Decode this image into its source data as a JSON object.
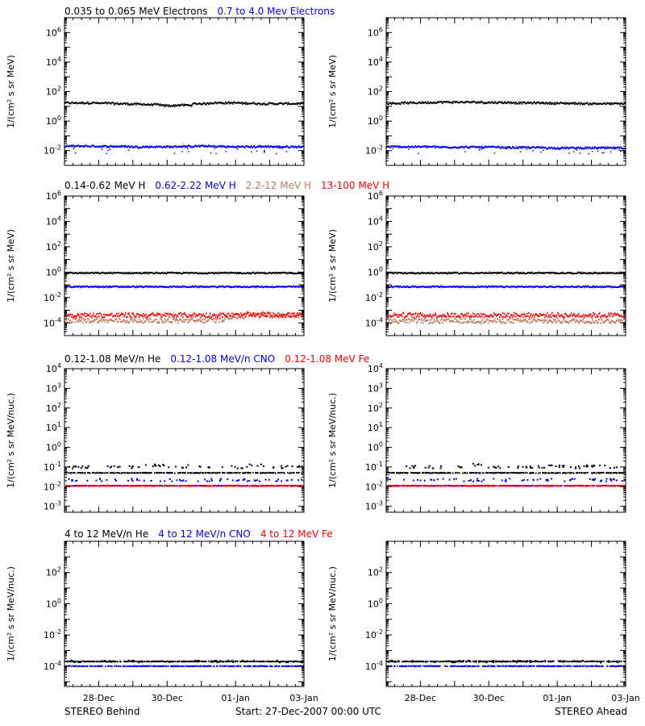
{
  "colors": {
    "black": "#000000",
    "blue": "#0000ff",
    "brown": "#c07a5f",
    "red": "#ff0000"
  },
  "footer": {
    "left": "STEREO Behind",
    "center": "Start: 27-Dec-2007 00:00 UTC",
    "right": "STEREO Ahead"
  },
  "chart_data": [
    {
      "type": "scatter",
      "row_title": [
        {
          "text": "0.035 to 0.065 MeV Electrons",
          "color": "#000000"
        },
        {
          "text": "0.7 to 4.0 Mev Electrons",
          "color": "#0000ff"
        }
      ],
      "ylabel": "1/(cm² s sr MeV)",
      "yscale": "log",
      "ylim": [
        0.001,
        10000000
      ],
      "yticks": [
        {
          "label": "10^-2",
          "value": 0.01
        },
        {
          "label": "10^0",
          "value": 1
        },
        {
          "label": "10^2",
          "value": 100
        },
        {
          "label": "10^4",
          "value": 10000
        },
        {
          "label": "10^6",
          "value": 1000000
        }
      ],
      "x_ticks": [
        "28-Dec",
        "30-Dec",
        "01-Jan",
        "03-Jan"
      ],
      "xlim_days": [
        0,
        7
      ],
      "panels": [
        {
          "spacecraft": "STEREO Behind",
          "series": [
            {
              "color": "#000000",
              "values": [
                17,
                17,
                16,
                15,
                14,
                13,
                11,
                12,
                15,
                17,
                17,
                16,
                15,
                15,
                15
              ]
            },
            {
              "color": "#0000ff",
              "values": [
                0.02,
                0.02,
                0.019,
                0.019,
                0.018,
                0.018,
                0.018,
                0.019,
                0.02,
                0.019,
                0.018,
                0.018,
                0.019,
                0.018,
                0.018
              ]
            }
          ]
        },
        {
          "spacecraft": "STEREO Ahead",
          "series": [
            {
              "color": "#000000",
              "values": [
                16,
                17,
                18,
                19,
                19,
                19,
                18,
                18,
                17,
                17,
                16,
                16,
                15,
                15,
                15
              ]
            },
            {
              "color": "#0000ff",
              "values": [
                0.018,
                0.018,
                0.018,
                0.017,
                0.017,
                0.017,
                0.017,
                0.016,
                0.016,
                0.016,
                0.015,
                0.015,
                0.015,
                0.015,
                0.015
              ]
            }
          ]
        }
      ]
    },
    {
      "type": "scatter",
      "row_title": [
        {
          "text": "0.14-0.62 MeV H",
          "color": "#000000"
        },
        {
          "text": "0.62-2.22 MeV H",
          "color": "#0000ff"
        },
        {
          "text": "2.2-12 MeV H",
          "color": "#c07a5f"
        },
        {
          "text": "13-100 MeV H",
          "color": "#ff0000"
        }
      ],
      "ylabel": "1/(cm² s sr MeV)",
      "yscale": "log",
      "ylim": [
        1e-05,
        1000000
      ],
      "yticks": [
        {
          "label": "10^-4",
          "value": 0.0001
        },
        {
          "label": "10^-2",
          "value": 0.01
        },
        {
          "label": "10^0",
          "value": 1
        },
        {
          "label": "10^2",
          "value": 100
        },
        {
          "label": "10^4",
          "value": 10000
        },
        {
          "label": "10^6",
          "value": 1000000
        }
      ],
      "x_ticks": [
        "28-Dec",
        "30-Dec",
        "01-Jan",
        "03-Jan"
      ],
      "xlim_days": [
        0,
        7
      ],
      "panels": [
        {
          "spacecraft": "STEREO Behind",
          "series": [
            {
              "color": "#000000",
              "values": [
                0.85,
                0.85,
                0.85,
                0.85,
                0.85,
                0.85,
                0.85,
                0.85,
                0.85,
                0.85,
                0.85,
                0.85
              ]
            },
            {
              "color": "#0000ff",
              "values": [
                0.07,
                0.07,
                0.07,
                0.07,
                0.07,
                0.07,
                0.07,
                0.07,
                0.07,
                0.07,
                0.07,
                0.07
              ]
            },
            {
              "color": "#c07a5f",
              "values": [
                0.00015,
                0.00015,
                0.00015,
                0.00015,
                0.00015,
                0.00015,
                0.00015,
                0.00016,
                0.0003,
                0.0005,
                0.0005,
                0.0004
              ]
            },
            {
              "color": "#ff0000",
              "values": [
                0.0004,
                0.0004,
                0.0004,
                0.0004,
                0.0004,
                0.0004,
                0.0004,
                0.0004,
                0.0004,
                0.0004,
                0.0004,
                0.0004
              ]
            }
          ]
        },
        {
          "spacecraft": "STEREO Ahead",
          "series": [
            {
              "color": "#000000",
              "values": [
                0.85,
                0.85,
                0.85,
                0.85,
                0.85,
                0.85,
                0.85,
                0.85,
                0.85,
                0.85,
                0.85,
                0.85
              ]
            },
            {
              "color": "#0000ff",
              "values": [
                0.07,
                0.07,
                0.07,
                0.07,
                0.07,
                0.07,
                0.07,
                0.07,
                0.07,
                0.07,
                0.07,
                0.07
              ]
            },
            {
              "color": "#c07a5f",
              "values": [
                0.00014,
                0.00014,
                0.00014,
                0.00014,
                0.00014,
                0.00014,
                0.00014,
                0.00014,
                0.00014,
                0.00014,
                0.00014,
                0.00014
              ]
            },
            {
              "color": "#ff0000",
              "values": [
                0.0004,
                0.0004,
                0.0004,
                0.0004,
                0.0004,
                0.0004,
                0.0004,
                0.0004,
                0.0004,
                0.0004,
                0.0004,
                0.0004
              ]
            }
          ]
        }
      ]
    },
    {
      "type": "scatter",
      "row_title": [
        {
          "text": "0.12-1.08 MeV/n He",
          "color": "#000000"
        },
        {
          "text": "0.12-1.08 MeV/n CNO",
          "color": "#0000ff"
        },
        {
          "text": "0.12-1.08 MeV Fe",
          "color": "#ff0000"
        }
      ],
      "ylabel": "1/(cm² s sr MeV/nuc.)",
      "yscale": "log",
      "ylim": [
        0.0005,
        10000
      ],
      "yticks": [
        {
          "label": "10^-3",
          "value": 0.001
        },
        {
          "label": "10^-2",
          "value": 0.01
        },
        {
          "label": "10^-1",
          "value": 0.1
        },
        {
          "label": "10^0",
          "value": 1
        },
        {
          "label": "10^1",
          "value": 10
        },
        {
          "label": "10^2",
          "value": 100
        },
        {
          "label": "10^3",
          "value": 1000
        },
        {
          "label": "10^4",
          "value": 10000
        }
      ],
      "x_ticks": [
        "28-Dec",
        "30-Dec",
        "01-Jan",
        "03-Jan"
      ],
      "xlim_days": [
        0,
        7
      ],
      "panels": [
        {
          "spacecraft": "STEREO Behind",
          "series": [
            {
              "color": "#000000",
              "values": [
                0.05,
                0.05,
                0.05,
                0.05,
                0.05,
                0.05,
                0.05,
                0.05,
                0.05,
                0.05,
                0.05,
                0.05
              ],
              "sparse": [
                0.1,
                0.1,
                0.11,
                0.1,
                0.12,
                0.1,
                0.11,
                0.1,
                0.1,
                0.12,
                0.1,
                0.1
              ]
            },
            {
              "color": "#0000ff",
              "values": [
                0.011,
                0.011,
                0.011,
                0.011,
                0.011,
                0.011,
                0.011,
                0.011,
                0.011,
                0.011,
                0.011,
                0.011
              ],
              "sparse": [
                0.022,
                0.022,
                0.022,
                0.022,
                0.022,
                0.022,
                0.022,
                0.022,
                0.022,
                0.022,
                0.022,
                0.022
              ]
            },
            {
              "color": "#ff0000",
              "values": [
                0.011,
                0.011,
                0.011,
                0.011,
                0.011,
                0.011,
                0.011,
                0.011,
                0.011,
                0.011,
                0.011,
                0.011
              ]
            }
          ]
        },
        {
          "spacecraft": "STEREO Ahead",
          "series": [
            {
              "color": "#000000",
              "values": [
                0.05,
                0.05,
                0.05,
                0.05,
                0.05,
                0.05,
                0.05,
                0.05,
                0.05,
                0.05,
                0.05,
                0.05
              ],
              "sparse": [
                0.1,
                0.1,
                0.1,
                0.11,
                0.13,
                0.1,
                0.1,
                0.1,
                0.11,
                0.1,
                0.12,
                0.1
              ]
            },
            {
              "color": "#0000ff",
              "values": [
                0.011,
                0.011,
                0.011,
                0.011,
                0.011,
                0.011,
                0.011,
                0.011,
                0.011,
                0.011,
                0.011,
                0.011
              ],
              "sparse": [
                0.022,
                0.022,
                0.022,
                0.022,
                0.022,
                0.022,
                0.022,
                0.022,
                0.022,
                0.022,
                0.022,
                0.022
              ]
            },
            {
              "color": "#ff0000",
              "values": [
                0.011,
                0.011,
                0.011,
                0.011,
                0.011,
                0.011,
                0.011,
                0.011,
                0.011,
                0.011,
                0.011,
                0.011
              ]
            }
          ]
        }
      ]
    },
    {
      "type": "scatter",
      "row_title": [
        {
          "text": "4 to 12 MeV/n He",
          "color": "#000000"
        },
        {
          "text": "4 to 12 MeV/n CNO",
          "color": "#0000ff"
        },
        {
          "text": "4 to 12 MeV Fe",
          "color": "#ff0000"
        }
      ],
      "ylabel": "1/(cm² s sr MeV/nuc.)",
      "yscale": "log",
      "ylim": [
        5e-06,
        10000
      ],
      "yticks": [
        {
          "label": "10^-4",
          "value": 0.0001
        },
        {
          "label": "10^-2",
          "value": 0.01
        },
        {
          "label": "10^0",
          "value": 1
        },
        {
          "label": "10^2",
          "value": 100
        }
      ],
      "x_ticks": [
        "28-Dec",
        "30-Dec",
        "01-Jan",
        "03-Jan"
      ],
      "xlim_days": [
        0,
        7
      ],
      "panels": [
        {
          "spacecraft": "STEREO Behind",
          "series": [
            {
              "color": "#0000ff",
              "values": [
                0.0001,
                0.0001,
                0.0001,
                0.0001,
                0.0001,
                0.0001,
                0.0001,
                0.0001,
                0.0001,
                0.0001,
                0.0001,
                0.0001
              ]
            },
            {
              "color": "#000000",
              "values": [
                0.0002,
                0.0002,
                0.0002,
                0.0002,
                0.0002,
                0.0002,
                0.0002,
                0.0002,
                0.0002,
                0.0002,
                0.0002,
                0.0002
              ],
              "sparse": [
                0.0002,
                0.0002,
                0.0002,
                0.0002,
                0.0002,
                0.0002,
                0.0002,
                0.0002,
                0.0002,
                0.0002,
                0.0002,
                0.0002
              ]
            }
          ]
        },
        {
          "spacecraft": "STEREO Ahead",
          "series": [
            {
              "color": "#0000ff",
              "values": [
                0.0001,
                0.0001,
                0.0001,
                0.0001,
                0.0001,
                0.0001,
                0.0001,
                0.0001,
                0.0001,
                0.0001,
                0.0001,
                0.0001
              ]
            },
            {
              "color": "#000000",
              "values": [
                0.0002,
                0.0002,
                0.0002,
                0.0002,
                0.0002,
                0.0002,
                0.0002,
                0.0002,
                0.0002,
                0.0002,
                0.0002,
                0.0002
              ],
              "sparse": [
                0.0002,
                0.0002,
                0.0002,
                0.0002,
                0.0002,
                0.0002,
                0.0002,
                0.0002,
                0.0002,
                0.0002,
                0.0002,
                0.0002
              ]
            }
          ]
        }
      ]
    }
  ]
}
